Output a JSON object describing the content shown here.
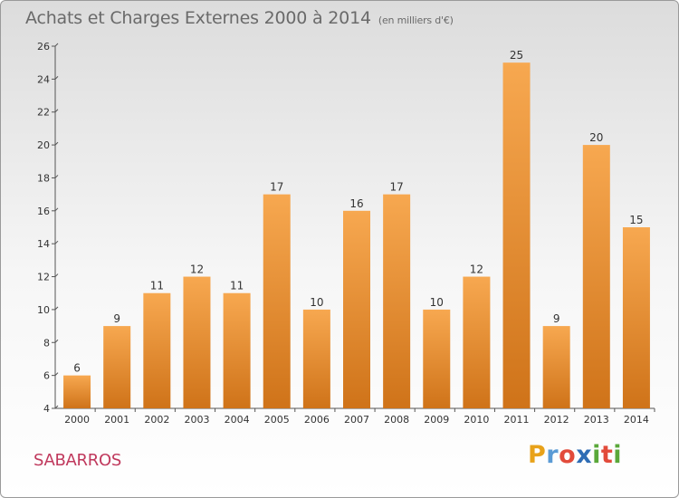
{
  "header": {
    "title": "Achats et Charges Externes 2000 à 2014",
    "subtitle": "(en milliers d'€)"
  },
  "footer": {
    "commune": "SABARROS",
    "brand": "Proxiti",
    "brand_colors": [
      "#e8a21a",
      "#5b9bd5",
      "#e24b3b",
      "#2f6db5",
      "#5aa83a",
      "#e24b3b",
      "#5aa83a"
    ]
  },
  "colors": {
    "bar_light": "#f7a850",
    "bar_dark": "#cf7319",
    "axis": "#555555",
    "grid": "#d0d0d0"
  },
  "chart_data": {
    "type": "bar",
    "categories": [
      "2000",
      "2001",
      "2002",
      "2003",
      "2004",
      "2005",
      "2006",
      "2007",
      "2008",
      "2009",
      "2010",
      "2011",
      "2012",
      "2013",
      "2014"
    ],
    "values": [
      6,
      9,
      11,
      12,
      11,
      17,
      10,
      16,
      17,
      10,
      12,
      25,
      9,
      20,
      15
    ],
    "ylim": [
      4,
      26
    ],
    "yticks": [
      4,
      6,
      8,
      10,
      12,
      14,
      16,
      18,
      20,
      22,
      24,
      26
    ],
    "xlabel": "",
    "ylabel": "",
    "data_labels": true,
    "grid": false
  }
}
